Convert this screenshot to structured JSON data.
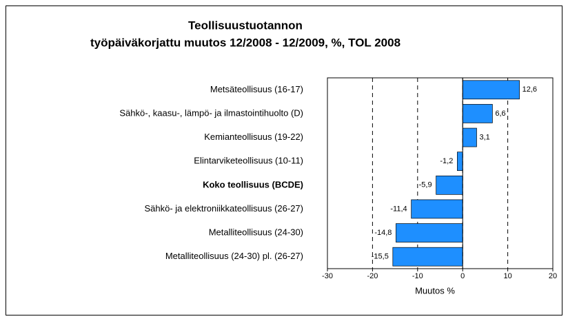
{
  "chart_data": {
    "type": "hbar",
    "title": "Teollisuustuotannon",
    "subtitle": "työpäiväkorjattu muutos 12/2008 - 12/2009,  %,  TOL 2008",
    "x_label": "Muutos %",
    "categories": [
      "Metsäteollisuus (16-17)",
      "Sähkö-, kaasu-, lämpö- ja ilmastointihuolto (D)",
      "Kemianteollisuus (19-22)",
      "Elintarviketeollisuus (10-11)",
      "Koko teollisuus (BCDE)",
      "Sähkö- ja elektroniikkateollisuus (26-27)",
      "Metalliteollisuus (24-30)",
      "Metalliteollisuus (24-30) pl. (26-27)"
    ],
    "values": [
      12.6,
      6.6,
      3.1,
      -1.2,
      -5.9,
      -11.4,
      -14.8,
      -15.5
    ],
    "value_labels": [
      "12,6",
      "6,6",
      "3,1",
      "-1,2",
      "-5,9",
      "-11,4",
      "-14,8",
      "-15,5"
    ],
    "bold_categories": [
      4
    ],
    "color": "#1e8fff",
    "xlim": [
      -30,
      20
    ],
    "xticks": [
      -30,
      -20,
      -10,
      0,
      10,
      20
    ],
    "grid": true
  }
}
